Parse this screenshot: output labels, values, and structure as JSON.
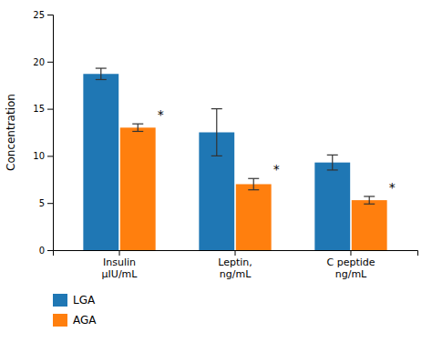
{
  "chart_data": {
    "type": "bar",
    "y_label": "Concentration",
    "categories": [
      "Insulin\nμIU/mL",
      "Leptin,\nng/mL",
      "C peptide\nng/mL"
    ],
    "series": [
      {
        "name": "LGA",
        "values": [
          18.7,
          12.5,
          9.3
        ],
        "errors": [
          0.6,
          2.5,
          0.8
        ]
      },
      {
        "name": "AGA",
        "values": [
          13.0,
          7.0,
          5.3
        ],
        "errors": [
          0.4,
          0.6,
          0.4
        ]
      }
    ],
    "annotations": [
      {
        "text": "*",
        "x": "Insulin\nμIU/mL",
        "series": "AGA",
        "y": 13.9
      },
      {
        "text": "*",
        "x": "Leptin,\nng/mL",
        "series": "AGA",
        "y": 8.1
      },
      {
        "text": "*",
        "x": "C peptide\nng/mL",
        "series": "AGA",
        "y": 6.2
      }
    ],
    "ylim": [
      0,
      25
    ],
    "yticks": [
      0,
      5,
      10,
      15,
      20,
      25
    ],
    "grid": false,
    "legend": "bottom"
  }
}
